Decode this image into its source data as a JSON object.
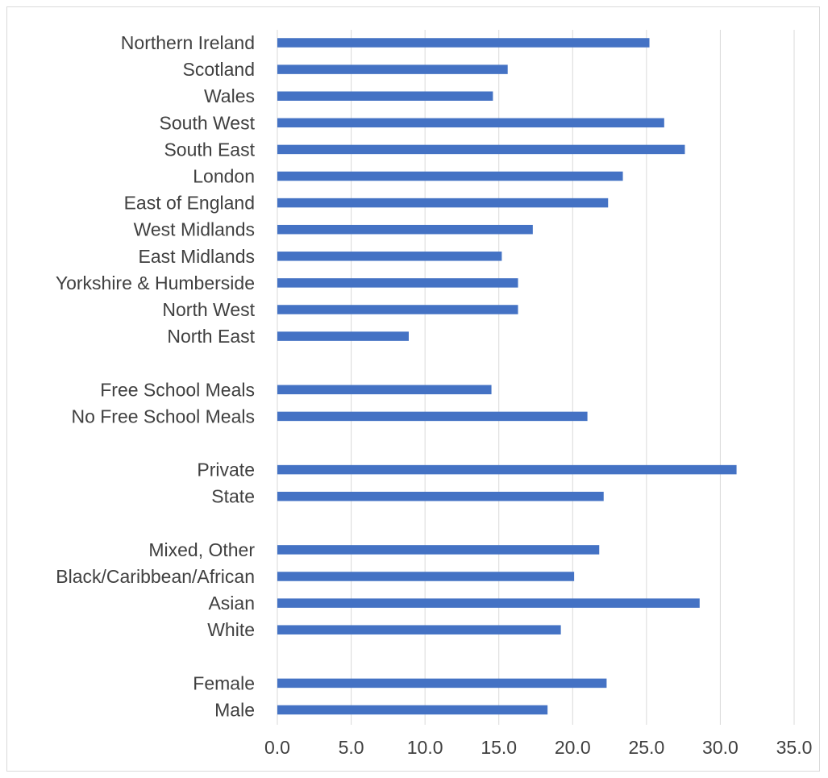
{
  "chart_data": {
    "type": "bar",
    "orientation": "horizontal",
    "title": "",
    "xlabel": "",
    "ylabel": "",
    "xlim": [
      0,
      35
    ],
    "x_ticks": [
      "0.0",
      "5.0",
      "10.0",
      "15.0",
      "20.0",
      "25.0",
      "30.0",
      "35.0"
    ],
    "grid": "vertical",
    "legend": "none",
    "bar_color": "#4472c4",
    "categories": [
      "Northern Ireland",
      "Scotland",
      "Wales",
      "South West",
      "South East",
      "London",
      "East of England",
      "West Midlands",
      "East Midlands",
      "Yorkshire & Humberside",
      "North West",
      "North East",
      "",
      "Free School Meals",
      "No Free School Meals",
      "",
      "Private",
      "State",
      "",
      "Mixed, Other",
      "Black/Caribbean/African",
      "Asian",
      "White",
      "",
      "Female",
      "Male"
    ],
    "values": [
      25.2,
      15.6,
      14.6,
      26.2,
      27.6,
      23.4,
      22.4,
      17.3,
      15.2,
      16.3,
      16.3,
      8.9,
      null,
      14.5,
      21.0,
      null,
      31.1,
      22.1,
      null,
      21.8,
      20.1,
      28.6,
      19.2,
      null,
      22.3,
      18.3
    ]
  }
}
